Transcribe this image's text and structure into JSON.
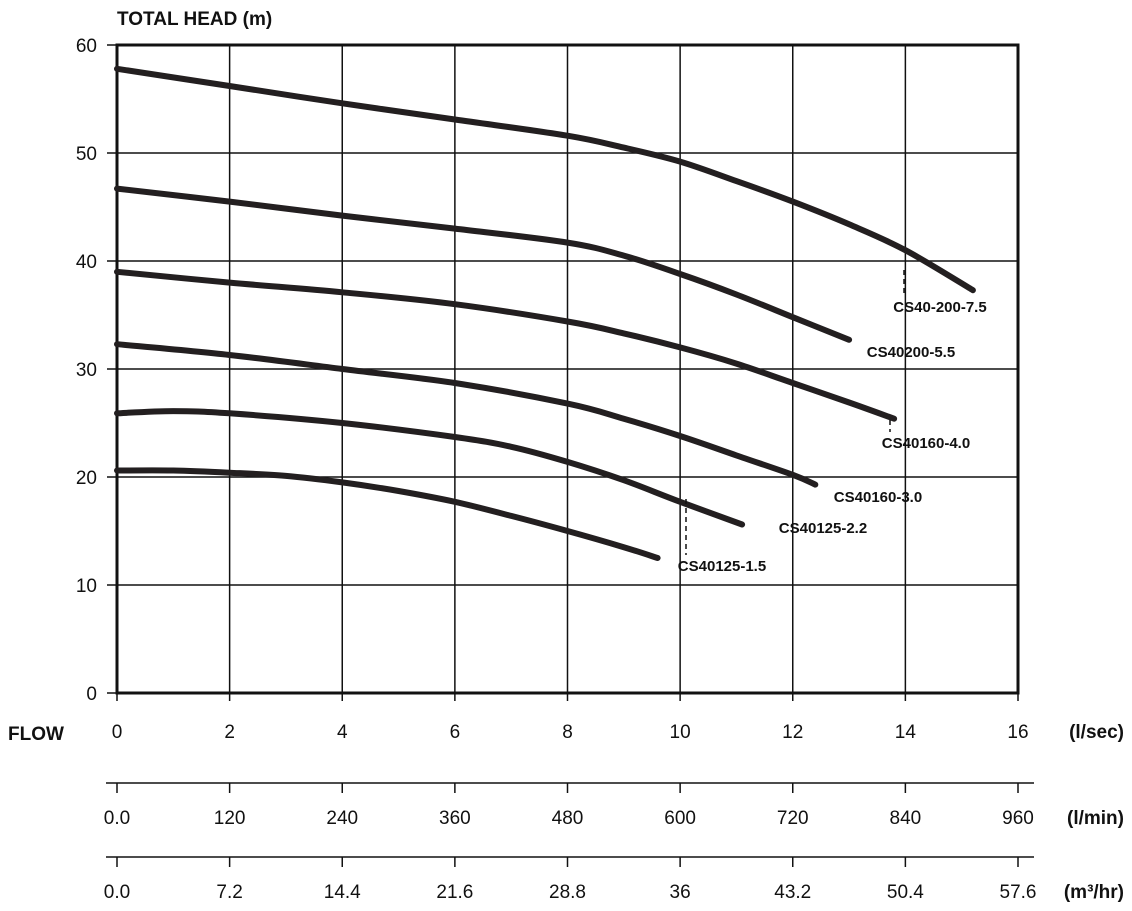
{
  "chart_data": {
    "type": "line",
    "ylabel": "TOTAL HEAD (m)",
    "xlabel": "FLOW",
    "ylim": [
      0,
      60
    ],
    "xlim": [
      0,
      16
    ],
    "grid": true,
    "y_ticks": [
      "0",
      "10",
      "20",
      "30",
      "40",
      "50",
      "60"
    ],
    "x_axes": [
      {
        "unit": "(l/sec)",
        "ticks": [
          "0",
          "2",
          "4",
          "6",
          "8",
          "10",
          "12",
          "14",
          "16"
        ]
      },
      {
        "unit": "(l/min)",
        "ticks": [
          "0.0",
          "120",
          "240",
          "360",
          "480",
          "600",
          "720",
          "840",
          "960"
        ]
      },
      {
        "unit": "(m³/hr)",
        "ticks": [
          "0.0",
          "7.2",
          "14.4",
          "21.6",
          "28.8",
          "36",
          "43.2",
          "50.4",
          "57.6"
        ]
      }
    ],
    "series": [
      {
        "name": "CS40-200-7.5",
        "x": [
          0,
          2,
          4,
          6,
          8,
          9,
          10,
          11,
          12,
          13,
          14,
          15.2
        ],
        "y": [
          57.8,
          56.2,
          54.6,
          53.1,
          51.6,
          50.5,
          49.2,
          47.4,
          45.5,
          43.4,
          41.0,
          37.3
        ]
      },
      {
        "name": "CS40200-5.5",
        "x": [
          0,
          2,
          4,
          6,
          8,
          9,
          10,
          11,
          12,
          13
        ],
        "y": [
          46.7,
          45.5,
          44.2,
          43.0,
          41.7,
          40.5,
          38.8,
          36.9,
          34.8,
          32.7
        ]
      },
      {
        "name": "CS40160-4.0",
        "x": [
          0,
          2,
          4,
          6,
          8,
          9,
          10,
          11,
          12,
          13,
          13.8
        ],
        "y": [
          39.0,
          38.0,
          37.1,
          36.0,
          34.4,
          33.3,
          32.0,
          30.5,
          28.7,
          26.9,
          25.4
        ]
      },
      {
        "name": "CS40160-3.0",
        "x": [
          0,
          2,
          4,
          6,
          8,
          9,
          10,
          11,
          12,
          12.4
        ],
        "y": [
          32.3,
          31.3,
          30.0,
          28.7,
          26.8,
          25.4,
          23.8,
          22.0,
          20.2,
          19.3
        ]
      },
      {
        "name": "CS40125-2.2",
        "x": [
          0,
          1,
          2,
          4,
          6,
          7,
          8,
          9,
          10,
          11.1
        ],
        "y": [
          25.9,
          26.1,
          25.9,
          25.0,
          23.7,
          22.8,
          21.4,
          19.7,
          17.7,
          15.6
        ]
      },
      {
        "name": "CS40125-1.5",
        "x": [
          0,
          1,
          2,
          3,
          4,
          5,
          6,
          7,
          8,
          9,
          9.6
        ],
        "y": [
          20.6,
          20.6,
          20.4,
          20.1,
          19.5,
          18.7,
          17.7,
          16.4,
          15.0,
          13.5,
          12.5
        ]
      }
    ]
  }
}
